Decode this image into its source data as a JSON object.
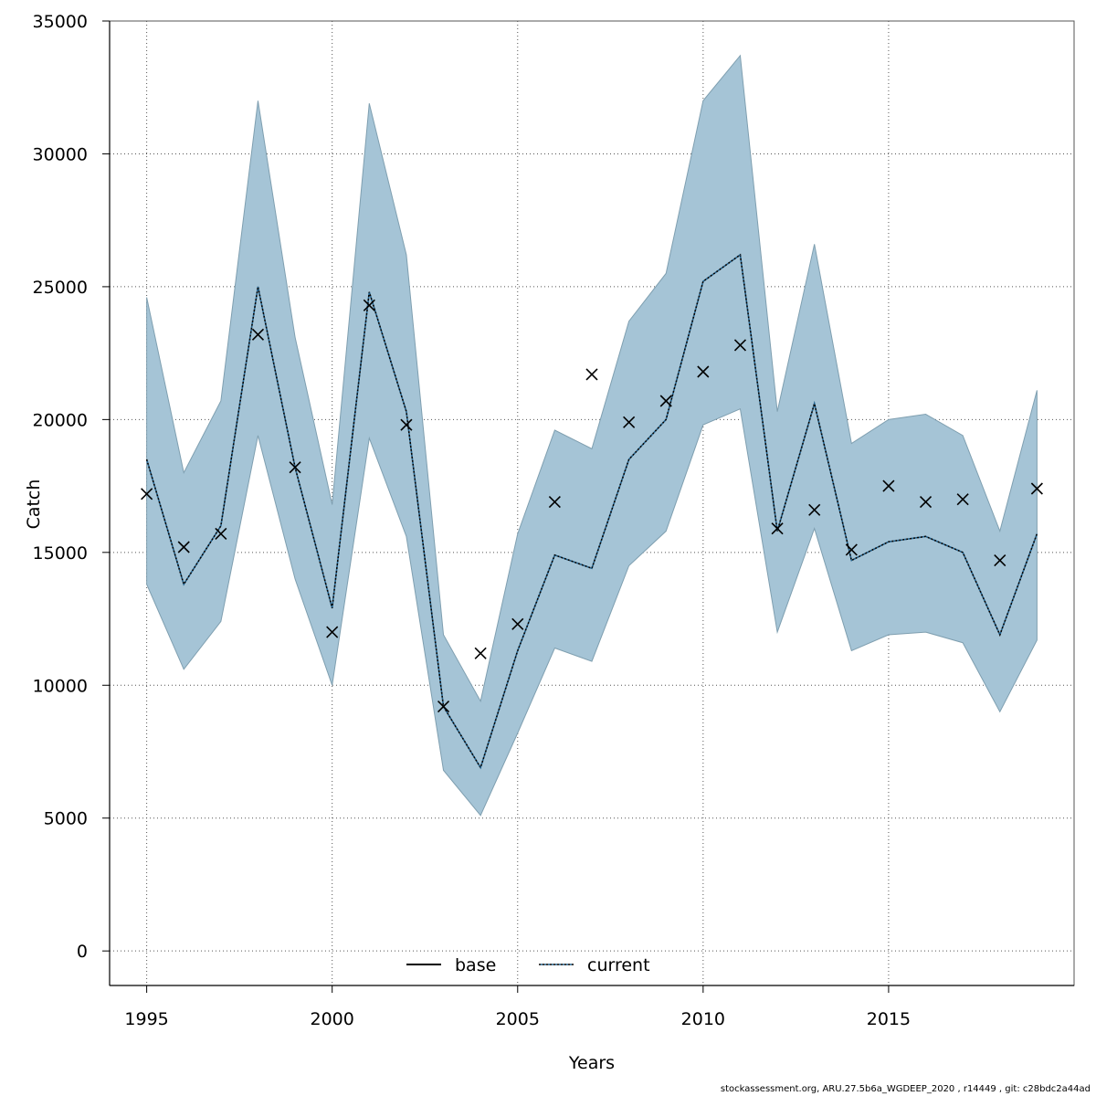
{
  "chart_data": {
    "type": "line",
    "xlabel": "Years",
    "ylabel": "Catch",
    "xlim": [
      1994,
      2020
    ],
    "ylim": [
      -1300,
      35000
    ],
    "x_ticks": [
      1995,
      2000,
      2005,
      2010,
      2015
    ],
    "y_ticks": [
      0,
      5000,
      10000,
      15000,
      20000,
      25000,
      30000,
      35000
    ],
    "grid": true,
    "legend_position": "bottom-center",
    "x": [
      1995,
      1996,
      1997,
      1998,
      1999,
      2000,
      2001,
      2002,
      2003,
      2004,
      2005,
      2006,
      2007,
      2008,
      2009,
      2010,
      2011,
      2012,
      2013,
      2014,
      2015,
      2016,
      2017,
      2018,
      2019
    ],
    "series": [
      {
        "name": "base",
        "style": "solid",
        "color": "#000000",
        "values": [
          18500,
          13800,
          16000,
          25000,
          18200,
          12900,
          24800,
          20300,
          9200,
          6900,
          11300,
          14900,
          14400,
          18500,
          20000,
          25200,
          26200,
          15800,
          20600,
          14700,
          15400,
          15600,
          15000,
          11900,
          15700
        ]
      },
      {
        "name": "current",
        "style": "dotted",
        "color": "#1f5f8b",
        "values": [
          18500,
          13800,
          16000,
          25000,
          18200,
          12900,
          24800,
          20300,
          9200,
          6900,
          11300,
          14900,
          14400,
          18500,
          20000,
          25200,
          26200,
          15800,
          20600,
          14700,
          15400,
          15600,
          15000,
          11900,
          15700
        ]
      }
    ],
    "confidence_band": {
      "color": "#a5c4d6",
      "upper": [
        24600,
        18000,
        20700,
        32000,
        23100,
        16800,
        31900,
        26200,
        11900,
        9400,
        15700,
        19600,
        18900,
        23700,
        25500,
        32000,
        33700,
        20300,
        26600,
        19100,
        20000,
        20200,
        19400,
        15800,
        21100
      ],
      "lower": [
        13800,
        10600,
        12400,
        19400,
        14000,
        10000,
        19300,
        15600,
        6800,
        5100,
        8200,
        11400,
        10900,
        14500,
        15800,
        19800,
        20400,
        12000,
        15900,
        11300,
        11900,
        12000,
        11600,
        9000,
        11700
      ]
    },
    "observations": {
      "marker": "x",
      "values": [
        17200,
        15200,
        15700,
        23200,
        18200,
        12000,
        24300,
        19800,
        9200,
        11200,
        12300,
        16900,
        21700,
        19900,
        20700,
        21800,
        22800,
        15900,
        16600,
        15100,
        17500,
        16900,
        17000,
        14700,
        17400
      ]
    }
  },
  "footer_text": "stockassessment.org, ARU.27.5b6a_WGDEEP_2020 , r14449 , git: c28bdc2a44ad"
}
